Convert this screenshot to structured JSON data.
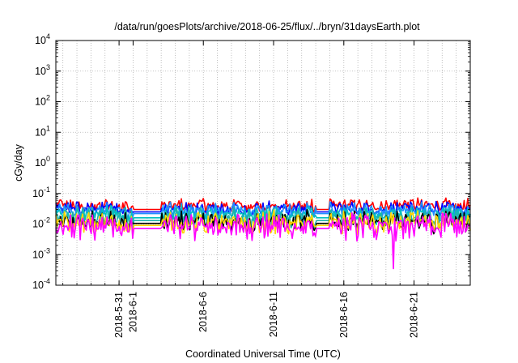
{
  "chart_data": {
    "type": "line",
    "title": "/data/run/goesPlots/archive/2018-06-25/flux/../bryn/31daysEarth.plot",
    "xlabel": "Coordinated Universal Time (UTC)",
    "ylabel": "cGy/day",
    "yscale": "log",
    "ylim": [
      0.0001,
      10000
    ],
    "xlim": [
      "2018-05-26T12:00",
      "2018-06-25T00:00"
    ],
    "grid": true,
    "legend": "none",
    "y_ticks": [
      {
        "base": "10",
        "exp": "-4"
      },
      {
        "base": "10",
        "exp": "-3"
      },
      {
        "base": "10",
        "exp": "-2"
      },
      {
        "base": "10",
        "exp": "-1"
      },
      {
        "base": "10",
        "exp": "0"
      },
      {
        "base": "10",
        "exp": "1"
      },
      {
        "base": "10",
        "exp": "2"
      },
      {
        "base": "10",
        "exp": "3"
      },
      {
        "base": "10",
        "exp": "4"
      }
    ],
    "x_ticks": [
      {
        "date": "2018-05-31",
        "label": "2018-5-31"
      },
      {
        "date": "2018-06-01",
        "label": "2018-6-1"
      },
      {
        "date": "2018-06-06",
        "label": "2018-6-6"
      },
      {
        "date": "2018-06-11",
        "label": "2018-6-11"
      },
      {
        "date": "2018-06-16",
        "label": "2018-6-16"
      },
      {
        "date": "2018-06-21",
        "label": "2018-6-21"
      }
    ],
    "gaps": [
      {
        "start": "2018-06-01",
        "end": "2018-06-03"
      },
      {
        "start": "2018-06-14",
        "end": "2018-06-15"
      }
    ],
    "series": [
      {
        "color": "#ff0000",
        "base": 0.04,
        "spread": 0.16,
        "gap_value": 0.03
      },
      {
        "color": "#0000ff",
        "base": 0.032,
        "spread": 0.16,
        "gap_value": 0.025
      },
      {
        "color": "#1e90ff",
        "base": 0.028,
        "spread": 0.17,
        "gap_value": 0.022
      },
      {
        "color": "#00c0c0",
        "base": 0.02,
        "spread": 0.2,
        "gap_value": 0.016
      },
      {
        "color": "#20b2aa",
        "base": 0.016,
        "spread": 0.22,
        "gap_value": 0.013
      },
      {
        "color": "#000000",
        "base": 0.012,
        "spread": 0.24,
        "gap_value": 0.0105
      },
      {
        "color": "#ffd700",
        "base": 0.0105,
        "spread": 0.26,
        "gap_value": 0.009
      },
      {
        "color": "#ff00ff",
        "base": 0.008,
        "spread": 0.3,
        "gap_value": 0.0072
      }
    ],
    "annotations": [
      {
        "series": 7,
        "date": "2018-06-19T12:00",
        "value": 0.00035
      }
    ]
  }
}
